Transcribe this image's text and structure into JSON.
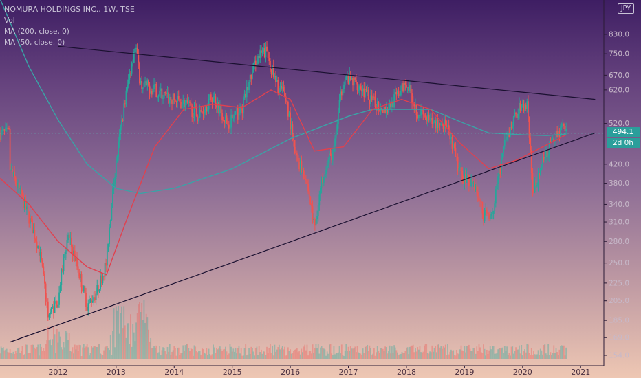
{
  "legend": {
    "title": "NOMURA HOLDINGS INC., 1W, TSE",
    "vol": "Vol",
    "ma200": "MA (200, close, 0)",
    "ma50": "MA (50, close, 0)"
  },
  "currency": "JPY",
  "last_price": "494.1",
  "countdown": "2d 0h",
  "colors": {
    "up": "#26a69a",
    "down": "#ef5350",
    "ma200": "#3aa3a6",
    "ma50": "#e0414f",
    "trendline": "#1a1030"
  },
  "chart_data": {
    "type": "candlestick",
    "ylim": [
      150,
      1000
    ],
    "y_scale": "log",
    "y_ticks": [
      154.0,
      169.0,
      185.0,
      205.0,
      225.0,
      250.0,
      280.0,
      310.0,
      340.0,
      380.0,
      420.0,
      520.0,
      620.0,
      670.0,
      750.0,
      830.0
    ],
    "x_ticks": [
      "2012",
      "2013",
      "2014",
      "2015",
      "2016",
      "2017",
      "2018",
      "2019",
      "2020",
      "2021"
    ],
    "close_path": [
      [
        "2011-03",
        410
      ],
      [
        "2011-06",
        340
      ],
      [
        "2011-09",
        270
      ],
      [
        "2011-11",
        190
      ],
      [
        "2012-01",
        205
      ],
      [
        "2012-03",
        290
      ],
      [
        "2012-05",
        245
      ],
      [
        "2012-07",
        200
      ],
      [
        "2012-09",
        215
      ],
      [
        "2012-11",
        250
      ],
      [
        "2013-01",
        420
      ],
      [
        "2013-03",
        600
      ],
      [
        "2013-05",
        790
      ],
      [
        "2013-06",
        640
      ],
      [
        "2013-09",
        620
      ],
      [
        "2013-12",
        590
      ],
      [
        "2014-03",
        580
      ],
      [
        "2014-06",
        540
      ],
      [
        "2014-09",
        600
      ],
      [
        "2014-12",
        520
      ],
      [
        "2015-03",
        560
      ],
      [
        "2015-06",
        730
      ],
      [
        "2015-08",
        760
      ],
      [
        "2015-10",
        640
      ],
      [
        "2015-12",
        600
      ],
      [
        "2016-02",
        440
      ],
      [
        "2016-04",
        400
      ],
      [
        "2016-06",
        300
      ],
      [
        "2016-08",
        410
      ],
      [
        "2016-10",
        450
      ],
      [
        "2016-12",
        660
      ],
      [
        "2017-03",
        640
      ],
      [
        "2017-06",
        580
      ],
      [
        "2017-09",
        560
      ],
      [
        "2017-12",
        620
      ],
      [
        "2018-01",
        650
      ],
      [
        "2018-03",
        560
      ],
      [
        "2018-06",
        520
      ],
      [
        "2018-09",
        520
      ],
      [
        "2018-12",
        400
      ],
      [
        "2019-03",
        380
      ],
      [
        "2019-05",
        320
      ],
      [
        "2019-07",
        330
      ],
      [
        "2019-09",
        450
      ],
      [
        "2019-12",
        560
      ],
      [
        "2020-02",
        570
      ],
      [
        "2020-03",
        360
      ],
      [
        "2020-05",
        420
      ],
      [
        "2020-07",
        470
      ],
      [
        "2020-09",
        510
      ],
      [
        "2020-10",
        494
      ]
    ],
    "ma200_path": [
      [
        "2011-01",
        1000
      ],
      [
        "2011-07",
        700
      ],
      [
        "2012-01",
        530
      ],
      [
        "2012-07",
        420
      ],
      [
        "2013-01",
        370
      ],
      [
        "2013-06",
        360
      ],
      [
        "2014-01",
        370
      ],
      [
        "2015-01",
        410
      ],
      [
        "2016-01",
        480
      ],
      [
        "2017-01",
        540
      ],
      [
        "2017-06",
        560
      ],
      [
        "2018-01",
        560
      ],
      [
        "2018-06",
        560
      ],
      [
        "2019-01",
        520
      ],
      [
        "2019-06",
        495
      ],
      [
        "2020-01",
        490
      ],
      [
        "2020-06",
        488
      ],
      [
        "2020-10",
        492
      ]
    ],
    "ma50_path": [
      [
        "2011-01",
        390
      ],
      [
        "2011-07",
        340
      ],
      [
        "2012-01",
        280
      ],
      [
        "2012-07",
        245
      ],
      [
        "2012-11",
        235
      ],
      [
        "2013-03",
        310
      ],
      [
        "2013-09",
        460
      ],
      [
        "2014-03",
        560
      ],
      [
        "2014-09",
        575
      ],
      [
        "2015-03",
        565
      ],
      [
        "2015-09",
        620
      ],
      [
        "2016-01",
        590
      ],
      [
        "2016-06",
        450
      ],
      [
        "2016-12",
        460
      ],
      [
        "2017-06",
        560
      ],
      [
        "2017-12",
        590
      ],
      [
        "2018-06",
        560
      ],
      [
        "2018-12",
        470
      ],
      [
        "2019-06",
        410
      ],
      [
        "2019-12",
        430
      ],
      [
        "2020-06",
        465
      ],
      [
        "2020-10",
        490
      ]
    ],
    "trendlines": [
      [
        [
          "2011-03",
          165
        ],
        [
          "2021-04",
          495
        ]
      ],
      [
        [
          "2012-01",
          780
        ],
        [
          "2021-04",
          590
        ]
      ]
    ]
  }
}
